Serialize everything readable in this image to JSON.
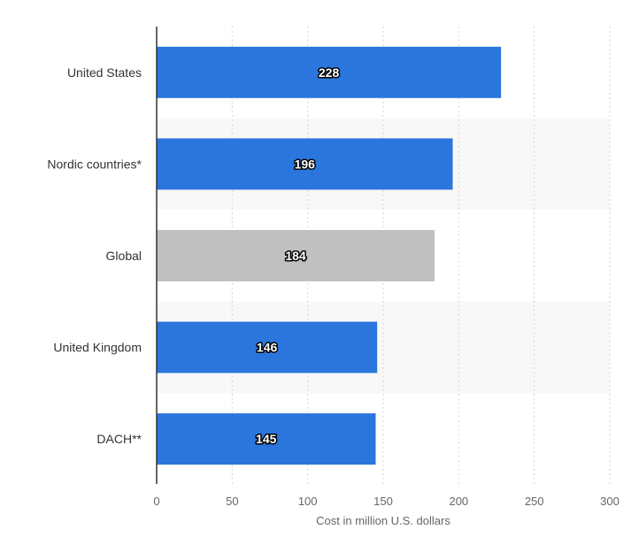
{
  "chart_data": {
    "type": "bar",
    "orientation": "horizontal",
    "categories": [
      "United States",
      "Nordic countries*",
      "Global",
      "United Kingdom",
      "DACH**"
    ],
    "values": [
      228,
      196,
      184,
      146,
      145
    ],
    "data_labels": [
      "228",
      "196",
      "184",
      "146",
      "145"
    ],
    "bar_colors": [
      "#2a76dd",
      "#2a76dd",
      "#c0c0c0",
      "#2a76dd",
      "#2a76dd"
    ],
    "highlight_category": "Global",
    "xlabel": "Cost in million U.S. dollars",
    "ylabel": "",
    "xlim": [
      0,
      300
    ],
    "xticks": [
      0,
      50,
      100,
      150,
      200,
      250,
      300
    ],
    "xtick_labels": [
      "0",
      "50",
      "100",
      "150",
      "200",
      "250",
      "300"
    ],
    "grid": "vertical dashed",
    "legend": "none"
  },
  "colors": {
    "bar": "#2a76dd",
    "highlight_bar": "#c0c0c0",
    "band": "#f8f8f8",
    "grid": "#d6d6d6",
    "axis": "#333333"
  }
}
